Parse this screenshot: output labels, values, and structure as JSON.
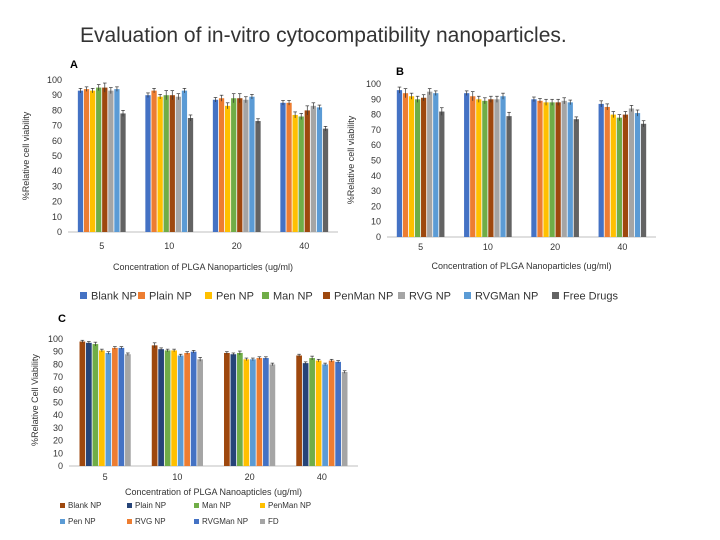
{
  "slide": {
    "title": "Evaluation of in-vitro cytocompatibility nanoparticles."
  },
  "colors": {
    "blank_ab": "#4472C4",
    "plain_ab": "#ED7D31",
    "pen_ab": "#FFC000",
    "man_ab": "#70AD47",
    "penman_ab": "#9E480E",
    "rvg_ab": "#A5A5A5",
    "rvgman_ab": "#5B9BD5",
    "free_ab": "#636363",
    "blank_c": "#9E480E",
    "plain_c": "#264478",
    "man_c": "#70AD47",
    "penman_c": "#FFC000",
    "pen_c": "#5B9BD5",
    "rvg_c": "#ED7D31",
    "rvgman_c": "#4472C4",
    "fd_c": "#A5A5A5"
  },
  "legend_ab": [
    "Blank NP",
    "Plain NP",
    "Pen NP",
    "Man NP",
    "PenMan NP",
    "RVG NP",
    "RVGMan NP",
    "Free Drugs"
  ],
  "legend_c": [
    "Blank NP",
    "Plain NP",
    "Man NP",
    "PenMan NP",
    "Pen NP",
    "RVG NP",
    "RVGMan NP",
    "FD"
  ],
  "chart_data": [
    {
      "panel": "A",
      "type": "bar",
      "categories": [
        "5",
        "10",
        "20",
        "40"
      ],
      "xlabel": "Concentration of PLGA Nanoparticles (ug/ml)",
      "ylabel": "%Relative cell viability",
      "ylim": [
        0,
        100
      ],
      "yticks": [
        0,
        10,
        20,
        30,
        40,
        50,
        60,
        70,
        80,
        90,
        100
      ],
      "series": [
        {
          "name": "Blank NP",
          "values": [
            93,
            90,
            87,
            85
          ],
          "errors": [
            1.5,
            1.5,
            1.5,
            1.5
          ]
        },
        {
          "name": "Plain NP",
          "values": [
            94,
            93,
            88,
            85
          ],
          "errors": [
            1.5,
            1.5,
            2,
            1.5
          ]
        },
        {
          "name": "Pen NP",
          "values": [
            93,
            89,
            83,
            77
          ],
          "errors": [
            1.5,
            1.5,
            2,
            2
          ]
        },
        {
          "name": "Man NP",
          "values": [
            95,
            90,
            88,
            76
          ],
          "errors": [
            2,
            3,
            3,
            2
          ]
        },
        {
          "name": "PenMan NP",
          "values": [
            95,
            90,
            88,
            80
          ],
          "errors": [
            3,
            3,
            3,
            3
          ]
        },
        {
          "name": "RVG NP",
          "values": [
            93,
            89,
            87,
            83
          ],
          "errors": [
            2,
            2,
            2,
            2
          ]
        },
        {
          "name": "RVGMan NP",
          "values": [
            94,
            93,
            89,
            82
          ],
          "errors": [
            1.5,
            1.5,
            1.5,
            1.5
          ]
        },
        {
          "name": "Free Drugs",
          "values": [
            78,
            75,
            73,
            68
          ],
          "errors": [
            2,
            2,
            1.5,
            1.5
          ]
        }
      ]
    },
    {
      "panel": "B",
      "type": "bar",
      "categories": [
        "5",
        "10",
        "20",
        "40"
      ],
      "xlabel": "Concentration of PLGA Nanoparticles (ug/ml)",
      "ylabel": "%Relative cell viability",
      "ylim": [
        0,
        100
      ],
      "yticks": [
        0,
        10,
        20,
        30,
        40,
        50,
        60,
        70,
        80,
        90,
        100
      ],
      "series": [
        {
          "name": "Blank NP",
          "values": [
            96,
            94,
            90,
            87
          ],
          "errors": [
            2,
            1.5,
            1.5,
            2
          ]
        },
        {
          "name": "Plain NP",
          "values": [
            94,
            92,
            89,
            85
          ],
          "errors": [
            3,
            3,
            1.5,
            2
          ]
        },
        {
          "name": "Pen NP",
          "values": [
            92,
            90,
            88,
            80
          ],
          "errors": [
            2,
            2,
            2,
            2
          ]
        },
        {
          "name": "Man NP",
          "values": [
            90,
            89,
            88,
            78
          ],
          "errors": [
            2,
            2,
            2,
            2
          ]
        },
        {
          "name": "PenMan NP",
          "values": [
            91,
            90,
            88,
            80
          ],
          "errors": [
            2,
            2,
            2,
            2
          ]
        },
        {
          "name": "RVG NP",
          "values": [
            95,
            90,
            89,
            84
          ],
          "errors": [
            2,
            2,
            2,
            2
          ]
        },
        {
          "name": "RVGMan NP",
          "values": [
            94,
            92,
            88,
            81
          ],
          "errors": [
            1.5,
            2,
            1.5,
            2
          ]
        },
        {
          "name": "Free Drugs",
          "values": [
            82,
            79,
            77,
            74
          ],
          "errors": [
            2.5,
            2.5,
            1.5,
            2
          ]
        }
      ]
    },
    {
      "panel": "C",
      "type": "bar",
      "categories": [
        "5",
        "10",
        "20",
        "40"
      ],
      "xlabel": "Concentration of PLGA Nanoapticles (ug/ml)",
      "ylabel": "%Relative Cell Viability",
      "ylim": [
        0,
        100
      ],
      "yticks": [
        0,
        10,
        20,
        30,
        40,
        50,
        60,
        70,
        80,
        90,
        100
      ],
      "series": [
        {
          "name": "Blank NP",
          "values": [
            98,
            95,
            89,
            87
          ],
          "errors": [
            1,
            2,
            1,
            1
          ]
        },
        {
          "name": "Plain NP",
          "values": [
            97,
            92,
            88,
            81
          ],
          "errors": [
            1,
            1,
            1,
            1
          ]
        },
        {
          "name": "Man NP",
          "values": [
            96,
            91,
            89,
            85
          ],
          "errors": [
            1.5,
            1,
            1.5,
            1.5
          ]
        },
        {
          "name": "PenMan NP",
          "values": [
            91,
            91,
            84,
            83
          ],
          "errors": [
            1,
            1,
            1,
            1
          ]
        },
        {
          "name": "Pen NP",
          "values": [
            89,
            87,
            84,
            80
          ],
          "errors": [
            1,
            1,
            1,
            1
          ]
        },
        {
          "name": "RVG NP",
          "values": [
            93,
            89,
            85,
            83
          ],
          "errors": [
            1,
            1,
            1,
            1
          ]
        },
        {
          "name": "RVGMan NP",
          "values": [
            93,
            90,
            85,
            82
          ],
          "errors": [
            1,
            1,
            1,
            1
          ]
        },
        {
          "name": "FD",
          "values": [
            88,
            84,
            80,
            74
          ],
          "errors": [
            1,
            1.5,
            1,
            1
          ]
        }
      ]
    }
  ]
}
